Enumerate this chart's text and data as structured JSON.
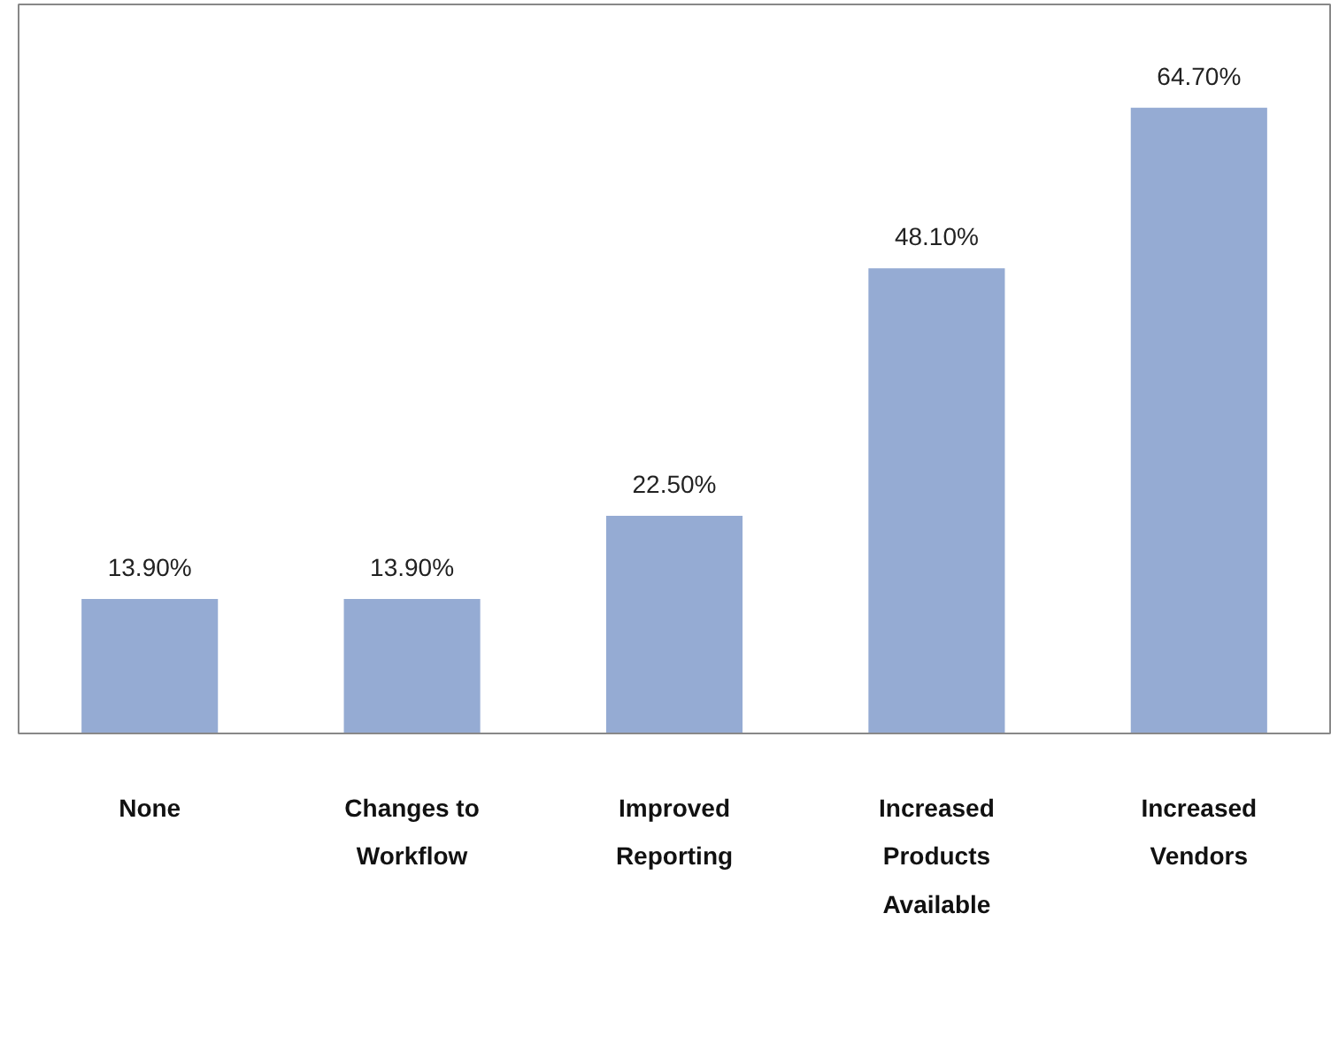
{
  "chart_data": {
    "type": "bar",
    "categories": [
      "None",
      "Changes to Workflow",
      "Improved Reporting",
      "Increased Products Available",
      "Increased Vendors"
    ],
    "values": [
      13.9,
      13.9,
      22.5,
      48.1,
      64.7
    ],
    "value_labels": [
      "13.90%",
      "13.90%",
      "22.50%",
      "48.10%",
      "64.70%"
    ],
    "color": "#95abd3",
    "grid": false
  }
}
